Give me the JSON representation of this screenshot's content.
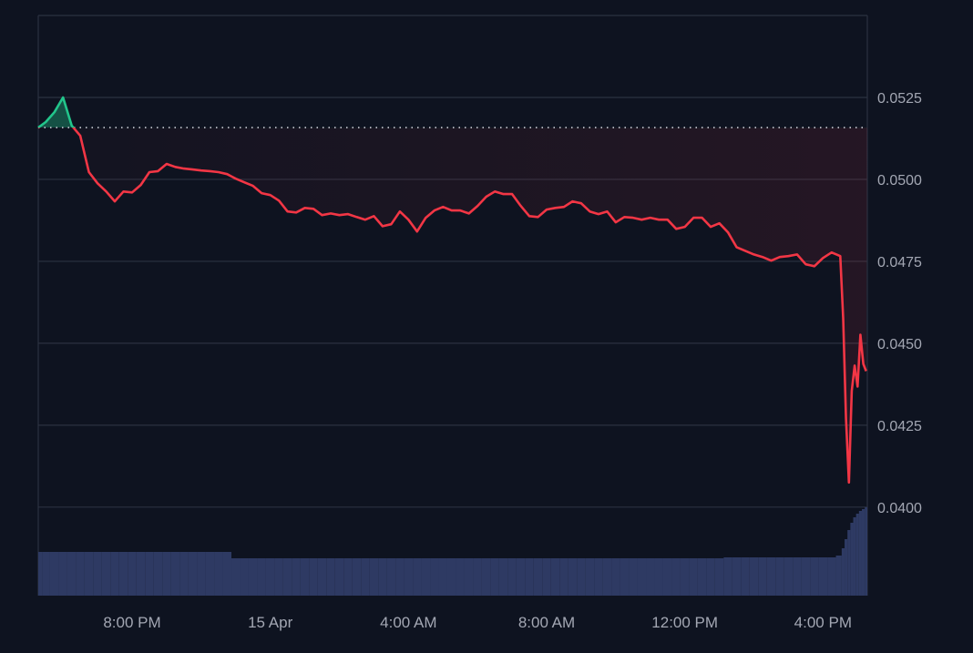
{
  "chart_data": {
    "type": "line",
    "title": "",
    "xlabel": "",
    "ylabel": "",
    "ylim": [
      0.0373,
      0.055
    ],
    "yticks": [
      "0.0525",
      "0.0500",
      "0.0475",
      "0.0450",
      "0.0425",
      "0.0400"
    ],
    "xticks": [
      "8:00 PM",
      "15 Apr",
      "4:00 AM",
      "8:00 AM",
      "12:00 PM",
      "4:00 PM"
    ],
    "grid": "horizontal",
    "baseline": 0.05158,
    "colors": {
      "background": "#0e1320",
      "up": "#22c58b",
      "down": "#f23645",
      "grid": "#2b3140",
      "volume": "#2e3a63",
      "text": "#a3a7b3"
    },
    "x": [
      "Apr 14 17:15",
      "Apr 14 17:30",
      "Apr 14 17:45",
      "Apr 14 18:00",
      "Apr 14 18:15",
      "Apr 14 18:30",
      "Apr 14 18:45",
      "Apr 14 19:00",
      "Apr 14 19:15",
      "Apr 14 19:30",
      "Apr 14 19:45",
      "Apr 14 20:00",
      "Apr 14 20:15",
      "Apr 14 20:30",
      "Apr 14 20:45",
      "Apr 14 21:00",
      "Apr 14 21:15",
      "Apr 14 21:30",
      "Apr 14 21:45",
      "Apr 14 22:00",
      "Apr 14 22:15",
      "Apr 14 22:30",
      "Apr 14 22:45",
      "Apr 14 23:00",
      "Apr 14 23:15",
      "Apr 14 23:30",
      "Apr 14 23:45",
      "Apr 15 00:00",
      "Apr 15 00:15",
      "Apr 15 00:30",
      "Apr 15 00:45",
      "Apr 15 01:00",
      "Apr 15 01:15",
      "Apr 15 01:30",
      "Apr 15 01:45",
      "Apr 15 02:00",
      "Apr 15 02:15",
      "Apr 15 02:30",
      "Apr 15 02:45",
      "Apr 15 03:00",
      "Apr 15 03:15",
      "Apr 15 03:30",
      "Apr 15 03:45",
      "Apr 15 04:00",
      "Apr 15 04:15",
      "Apr 15 04:30",
      "Apr 15 04:45",
      "Apr 15 05:00",
      "Apr 15 05:15",
      "Apr 15 05:30",
      "Apr 15 05:45",
      "Apr 15 06:00",
      "Apr 15 06:15",
      "Apr 15 06:30",
      "Apr 15 06:45",
      "Apr 15 07:00",
      "Apr 15 07:15",
      "Apr 15 07:30",
      "Apr 15 07:45",
      "Apr 15 08:00",
      "Apr 15 08:15",
      "Apr 15 08:30",
      "Apr 15 08:45",
      "Apr 15 09:00",
      "Apr 15 09:15",
      "Apr 15 09:30",
      "Apr 15 09:45",
      "Apr 15 10:00",
      "Apr 15 10:15",
      "Apr 15 10:30",
      "Apr 15 10:45",
      "Apr 15 11:00",
      "Apr 15 11:15",
      "Apr 15 11:30",
      "Apr 15 11:45",
      "Apr 15 12:00",
      "Apr 15 12:15",
      "Apr 15 12:30",
      "Apr 15 12:45",
      "Apr 15 13:00",
      "Apr 15 13:15",
      "Apr 15 13:30",
      "Apr 15 13:45",
      "Apr 15 14:00",
      "Apr 15 14:15",
      "Apr 15 14:30",
      "Apr 15 14:45",
      "Apr 15 15:00",
      "Apr 15 15:15",
      "Apr 15 15:30",
      "Apr 15 15:45",
      "Apr 15 16:00",
      "Apr 15 16:15",
      "Apr 15 16:30",
      "Apr 15 16:35",
      "Apr 15 16:40",
      "Apr 15 16:45",
      "Apr 15 16:50",
      "Apr 15 16:55",
      "Apr 15 17:00",
      "Apr 15 17:05",
      "Apr 15 17:10",
      "Apr 15 17:15"
    ],
    "series": [
      {
        "values": [
          0.05158,
          0.05175,
          0.05205,
          0.0525,
          0.05164,
          0.05133,
          0.05022,
          0.04988,
          0.04963,
          0.04933,
          0.04963,
          0.0496,
          0.04983,
          0.05022,
          0.05025,
          0.05047,
          0.05038,
          0.05033,
          0.0503,
          0.05027,
          0.05025,
          0.05022,
          0.05016,
          0.05002,
          0.04991,
          0.0498,
          0.04958,
          0.04952,
          0.04935,
          0.04902,
          0.04899,
          0.04913,
          0.0491,
          0.04891,
          0.04896,
          0.04891,
          0.04894,
          0.04885,
          0.04877,
          0.04888,
          0.04857,
          0.04863,
          0.04902,
          0.04877,
          0.04841,
          0.04883,
          0.04905,
          0.04916,
          0.04905,
          0.04905,
          0.04896,
          0.04919,
          0.04947,
          0.04963,
          0.04955,
          0.04955,
          0.04919,
          0.04888,
          0.04885,
          0.04908,
          0.04913,
          0.04916,
          0.04933,
          0.04927,
          0.04902,
          0.04894,
          0.04902,
          0.04869,
          0.04885,
          0.04883,
          0.04877,
          0.04883,
          0.04877,
          0.04877,
          0.04849,
          0.04855,
          0.04883,
          0.04883,
          0.04855,
          0.04866,
          0.04838,
          0.04793,
          0.04782,
          0.04771,
          0.04763,
          0.04752,
          0.04763,
          0.04766,
          0.04771,
          0.04741,
          0.04735,
          0.0476,
          0.04777,
          0.04766,
          0.04576,
          0.0427,
          0.04075,
          0.04354,
          0.04432,
          0.04368,
          0.04526,
          0.04437,
          0.04415
        ]
      },
      {
        "type": "volume",
        "values": [
          48,
          48,
          48,
          48,
          48,
          48,
          48,
          48,
          48,
          48,
          48,
          48,
          48,
          48,
          48,
          48,
          48,
          48,
          48,
          48,
          48,
          48,
          48,
          41,
          41,
          41,
          41,
          41,
          41,
          41,
          41,
          41,
          41,
          41,
          41,
          41,
          41,
          41,
          41,
          41,
          41,
          41,
          41,
          41,
          41,
          41,
          41,
          41,
          41,
          41,
          41,
          41,
          41,
          41,
          41,
          41,
          41,
          41,
          41,
          41,
          41,
          41,
          41,
          41,
          41,
          41,
          41,
          41,
          41,
          41,
          41,
          41,
          41,
          41,
          41,
          41,
          41,
          41,
          41,
          41,
          42,
          42,
          42,
          42,
          42,
          42,
          42,
          42,
          42,
          42,
          42,
          42,
          42,
          44,
          52,
          62,
          72,
          80,
          86,
          90,
          93,
          95,
          97
        ]
      }
    ]
  }
}
